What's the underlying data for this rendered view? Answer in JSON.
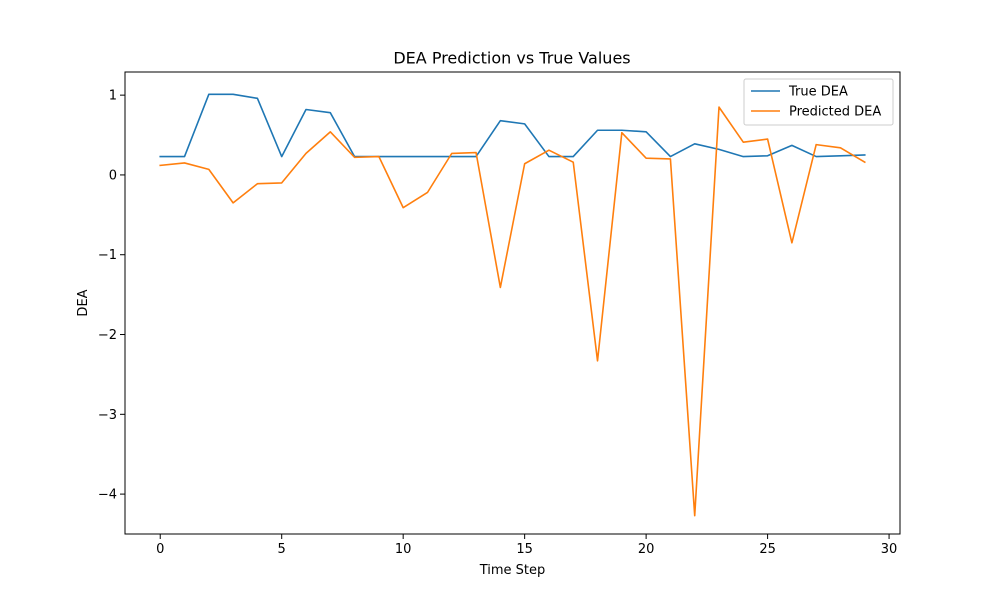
{
  "chart_data": {
    "type": "line",
    "title": "DEA Prediction vs True Values",
    "xlabel": "Time Step",
    "ylabel": "DEA",
    "xlim": [
      -1.45,
      30.45
    ],
    "ylim": [
      -4.5,
      1.29
    ],
    "xticks": [
      0,
      5,
      10,
      15,
      20,
      25,
      30
    ],
    "yticks": [
      -4,
      -3,
      -2,
      -1,
      0,
      1
    ],
    "xtick_labels": [
      "0",
      "5",
      "10",
      "15",
      "20",
      "25",
      "30"
    ],
    "ytick_labels": [
      "−4",
      "−3",
      "−2",
      "−1",
      "0",
      "1"
    ],
    "grid": false,
    "legend_position": "top-right",
    "x": [
      0,
      1,
      2,
      3,
      4,
      5,
      6,
      7,
      8,
      9,
      10,
      11,
      12,
      13,
      14,
      15,
      16,
      17,
      18,
      19,
      20,
      21,
      22,
      23,
      24,
      25,
      26,
      27,
      28,
      29
    ],
    "series": [
      {
        "name": "True DEA",
        "color": "#1f77b4",
        "values": [
          0.23,
          0.23,
          1.01,
          1.01,
          0.96,
          0.23,
          0.82,
          0.78,
          0.23,
          0.23,
          0.23,
          0.23,
          0.23,
          0.23,
          0.68,
          0.64,
          0.23,
          0.23,
          0.56,
          0.56,
          0.54,
          0.23,
          0.39,
          0.32,
          0.23,
          0.24,
          0.37,
          0.23,
          0.24,
          0.25
        ]
      },
      {
        "name": "Predicted DEA",
        "color": "#ff7f0e",
        "values": [
          0.12,
          0.15,
          0.07,
          -0.35,
          -0.11,
          -0.1,
          0.27,
          0.54,
          0.22,
          0.23,
          -0.41,
          -0.22,
          0.27,
          0.28,
          -1.41,
          0.14,
          0.31,
          0.16,
          -2.33,
          0.53,
          0.21,
          0.2,
          -4.27,
          0.85,
          0.41,
          0.45,
          -0.85,
          0.38,
          0.34,
          0.16
        ]
      }
    ]
  }
}
